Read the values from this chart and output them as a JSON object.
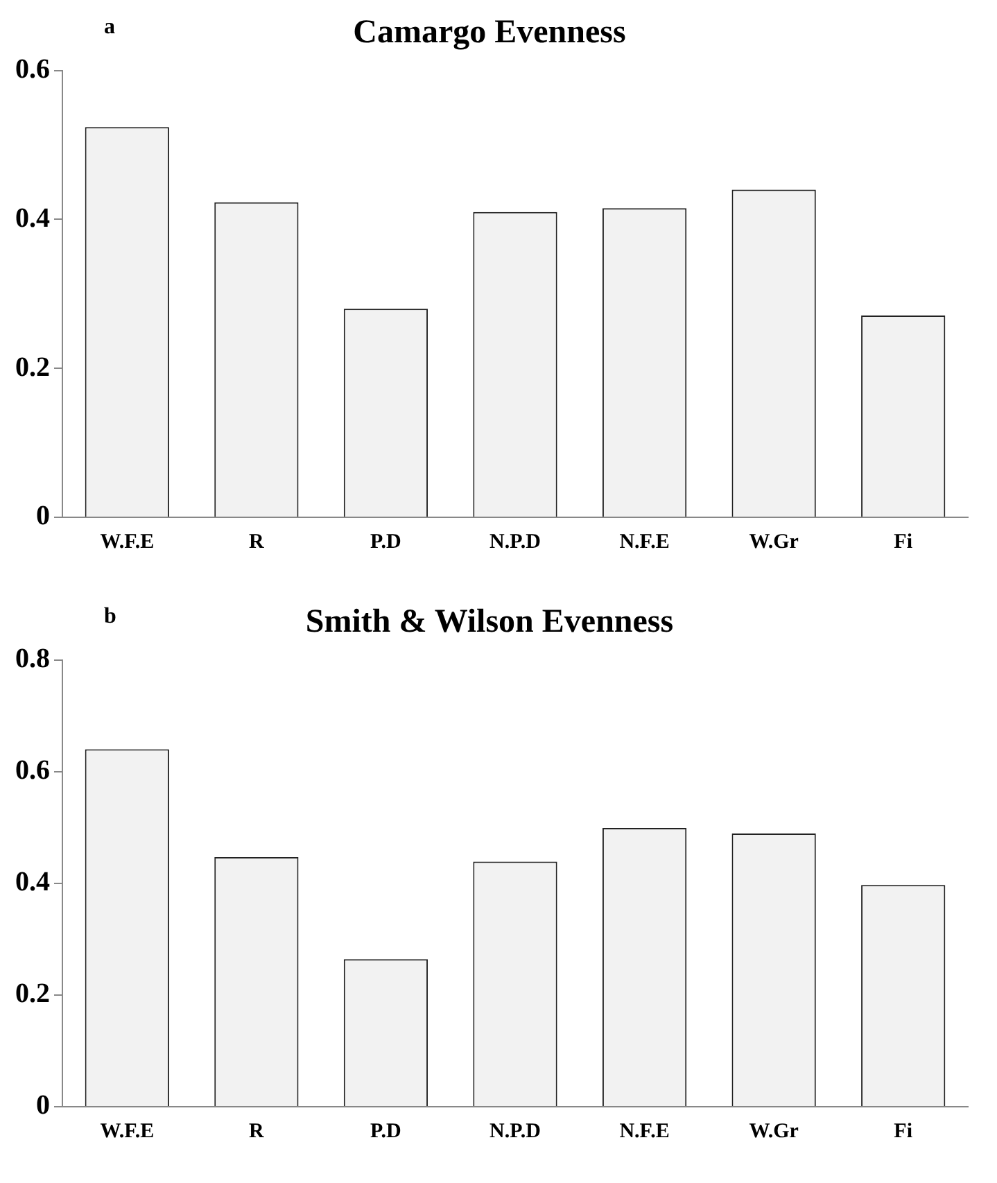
{
  "chart_data": [
    {
      "type": "bar",
      "title": "Camargo Evenness",
      "annotations": [
        "a"
      ],
      "categories": [
        "W.F.E",
        "R",
        "P.D",
        "N.P.D",
        "N.F.E",
        "W.Gr",
        "Fi"
      ],
      "values": [
        0.524,
        0.423,
        0.28,
        0.41,
        0.415,
        0.44,
        0.271
      ],
      "color": "#f2f2f2",
      "ylim": [
        0,
        0.6
      ],
      "yticks": [
        0,
        0.2,
        0.4,
        0.6
      ],
      "grid": false,
      "legend": false
    },
    {
      "type": "bar",
      "title": "Smith & Wilson Evenness",
      "annotations": [
        "b"
      ],
      "categories": [
        "W.F.E",
        "R",
        "P.D",
        "N.P.D",
        "N.F.E",
        "W.Gr",
        "Fi"
      ],
      "values": [
        0.64,
        0.447,
        0.264,
        0.439,
        0.499,
        0.489,
        0.397
      ],
      "color": "#f2f2f2",
      "ylim": [
        0,
        0.8
      ],
      "yticks": [
        0,
        0.2,
        0.4,
        0.6,
        0.8
      ],
      "grid": false,
      "legend": false
    }
  ]
}
